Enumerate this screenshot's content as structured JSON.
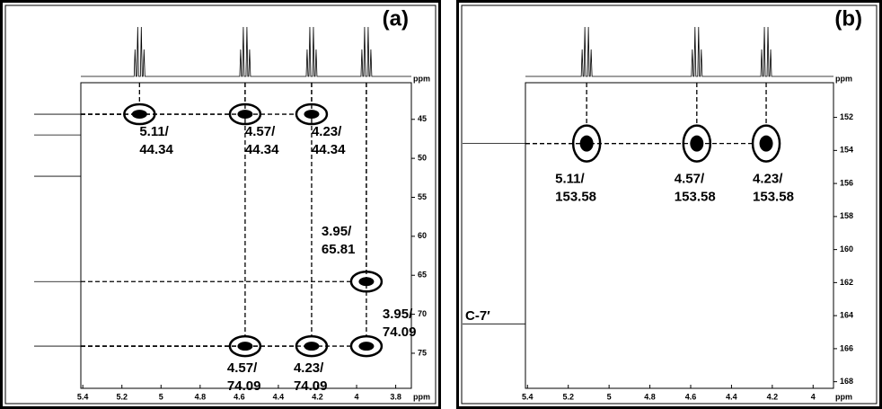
{
  "chart_data": [
    {
      "type": "scatter",
      "title": "(a)",
      "xlabel": "ppm",
      "ylabel": "ppm",
      "x": [
        5.11,
        4.57,
        4.23,
        3.95,
        4.57,
        4.23,
        3.95
      ],
      "values": [
        44.34,
        44.34,
        44.34,
        65.81,
        74.09,
        74.09,
        74.09
      ],
      "x_labels": [
        "5.11/",
        "4.57/",
        "4.23/",
        "3.95/",
        "4.57/",
        "4.23/",
        "3.95/"
      ],
      "xlim": [
        5.41,
        3.72
      ],
      "ylim": [
        40.3,
        79.5
      ],
      "xticks": [
        5.4,
        5.2,
        5.0,
        4.8,
        4.6,
        4.4,
        4.2,
        4.0,
        3.8
      ],
      "yticks": [
        45,
        50,
        55,
        60,
        65,
        70,
        75
      ],
      "color": "#000000"
    },
    {
      "type": "scatter",
      "title": "(b)",
      "xlabel": "ppm",
      "ylabel": "ppm",
      "annotation": "C-7′",
      "x": [
        5.11,
        4.57,
        4.23
      ],
      "values": [
        153.58,
        153.58,
        153.58
      ],
      "x_labels": [
        "5.11/",
        "4.57/",
        "4.23/"
      ],
      "xlim": [
        5.41,
        3.9
      ],
      "ylim": [
        149.9,
        168.4
      ],
      "xticks": [
        5.4,
        5.2,
        5.0,
        4.8,
        4.6,
        4.4,
        4.2,
        4.0
      ],
      "yticks": [
        152,
        154,
        156,
        158,
        160,
        162,
        164,
        166,
        168
      ],
      "color": "#000000"
    }
  ]
}
